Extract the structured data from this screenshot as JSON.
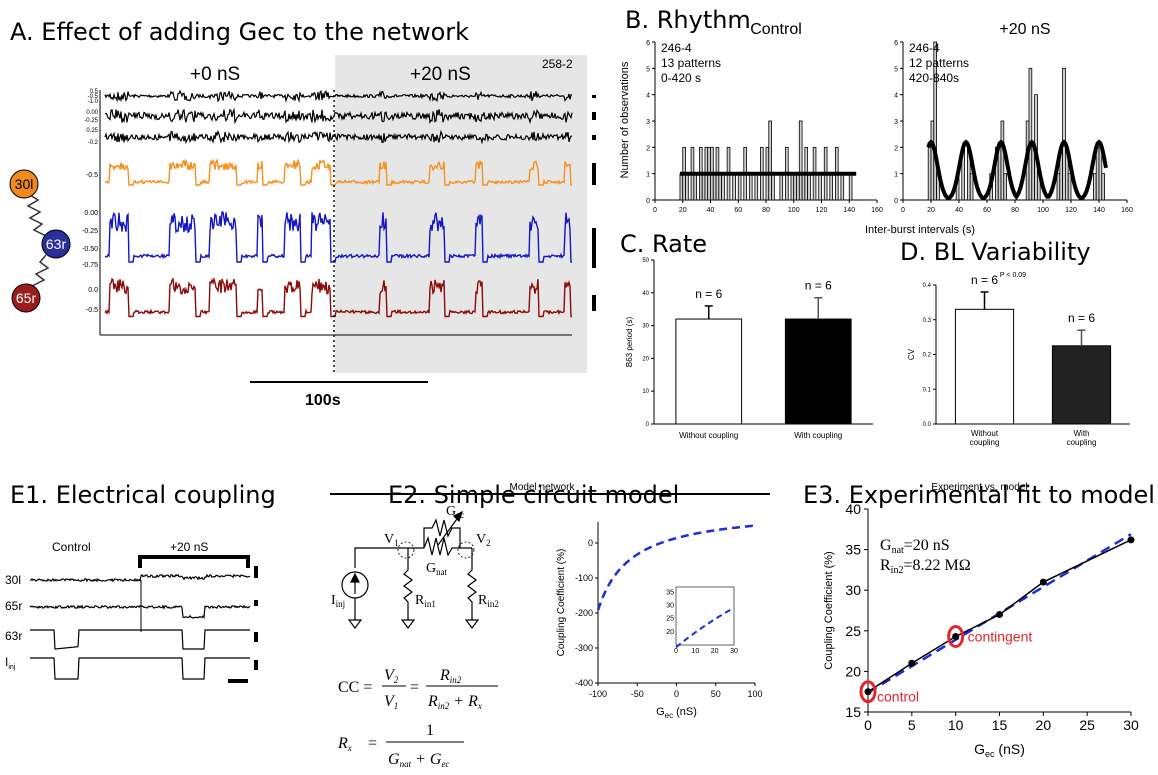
{
  "panelA": {
    "title": "A. Effect of adding Gec to the network",
    "cond_left": "+0 nS",
    "cond_right": "+20 nS",
    "file_id": "258-2",
    "scale_label": "100s",
    "neurons": [
      "30l",
      "63r",
      "65r"
    ],
    "neuron_colors": [
      "#f08a1c",
      "#2b2f9c",
      "#9b1c1c"
    ],
    "trace_colors": [
      "#f7901e",
      "#1515c8",
      "#8b0a0a"
    ],
    "trace_ticks": [
      [
        "0.5",
        "-0.5",
        "-1.0"
      ],
      [
        "0.00",
        "-0.25"
      ],
      [
        "0.25",
        "-0.2"
      ],
      [
        "-0.5"
      ],
      [
        "0.00",
        "-0.25",
        "-0.50",
        "-0.75"
      ],
      [
        "0.0",
        "-0.5"
      ]
    ]
  },
  "panelB": {
    "title": "B. Rhythm",
    "xlabel": "Inter-burst intervals (s)",
    "ylabel": "Number of observations"
  },
  "panelC": {
    "title": "C. Rate"
  },
  "panelD": {
    "title": "D. BL Variability"
  },
  "panelE1": {
    "title": "E1. Electrical coupling",
    "control": "Control",
    "cond": "+20 nS",
    "rows": [
      "30l",
      "65r",
      "63r",
      "I"
    ],
    "rows_sub": "inj"
  },
  "panelE2": {
    "title": "E2. Simple circuit model",
    "subtitle": "Model network",
    "labels": {
      "gec": "G",
      "gec_sub": "ec",
      "gnat": "G",
      "gnat_sub": "nat",
      "v1": "V",
      "v1_sub": "1",
      "v2": "V",
      "v2_sub": "2",
      "iinj": "I",
      "iinj_sub": "inj",
      "rin1": "R",
      "rin1_sub": "in1",
      "rin2": "R",
      "rin2_sub": "in2"
    },
    "eq1": {
      "lhs": "CC =",
      "n1": "V",
      "n1s": "2",
      "d1": "V",
      "d1s": "1",
      "eq": "=",
      "n2": "R",
      "n2s": "in2",
      "d2": "R",
      "d2s": "in2",
      "d2b": " + R",
      "d2bs": "x"
    },
    "eq2": {
      "lhs": "R",
      "lhss": "x",
      "eq": "=",
      "num": "1",
      "den": "G",
      "dens": "nat",
      "den2": " + G",
      "den2s": "ec"
    }
  },
  "panelE3": {
    "title": "E3. Experimental fit to model",
    "annot1": "G",
    "annot1_sub": "nat",
    "annot1_val": "=20 nS",
    "annot2": "R",
    "annot2_sub": "in2",
    "annot2_val": "=8.22 MΩ",
    "control_label": "control",
    "contingent_label": "contingent"
  },
  "chart_data": [
    {
      "type": "bar",
      "panel": "B-left",
      "title": "Control",
      "annotation": [
        "246-4",
        "13 patterns",
        "0-420 s"
      ],
      "xlim": [
        0,
        160
      ],
      "ylim": [
        0,
        6
      ],
      "x_ticks": [
        "0",
        "20",
        "40",
        "60",
        "80",
        "100",
        "120",
        "140",
        "160"
      ],
      "y_ticks": [
        "0",
        "1",
        "2",
        "3",
        "4",
        "5",
        "6"
      ],
      "bin_width": 2,
      "x": [
        18,
        20,
        22,
        26,
        28,
        32,
        34,
        36,
        38,
        40,
        42,
        44,
        46,
        48,
        52,
        56,
        60,
        64,
        68,
        72,
        76,
        80,
        82,
        84,
        90,
        94,
        98,
        100,
        102,
        104,
        106,
        108,
        110,
        114,
        118,
        122,
        126,
        130,
        134,
        140
      ],
      "values": [
        1,
        2,
        1,
        2,
        1,
        2,
        1,
        2,
        2,
        2,
        1,
        2,
        1,
        1,
        2,
        1,
        1,
        2,
        1,
        1,
        2,
        2,
        3,
        1,
        1,
        2,
        1,
        1,
        1,
        3,
        1,
        2,
        1,
        2,
        1,
        2,
        1,
        2,
        1,
        1
      ],
      "fit": "flat line at y≈1"
    },
    {
      "type": "bar",
      "panel": "B-right",
      "title": "+20 nS",
      "annotation": [
        "246-4",
        "12 patterns",
        "420-840s"
      ],
      "xlim": [
        0,
        160
      ],
      "ylim": [
        0,
        6
      ],
      "x_ticks": [
        "0",
        "20",
        "40",
        "60",
        "80",
        "100",
        "120",
        "140",
        "160"
      ],
      "y_ticks": [
        "0",
        "1",
        "2",
        "3",
        "4",
        "5",
        "6"
      ],
      "bin_width": 2,
      "x": [
        18,
        20,
        22,
        24,
        38,
        42,
        46,
        48,
        62,
        66,
        68,
        70,
        72,
        88,
        90,
        92,
        94,
        96,
        110,
        112,
        114,
        116,
        118,
        136,
        138,
        140,
        142
      ],
      "values": [
        2,
        3,
        6,
        1,
        1,
        2,
        2,
        1,
        1,
        2,
        2,
        3,
        1,
        3,
        5,
        2,
        4,
        1,
        1,
        2,
        5,
        2,
        1,
        1,
        2,
        2,
        1
      ],
      "fit": "periodic humps centred ~20, 45, 70, 92, 115, 140"
    },
    {
      "type": "bar",
      "panel": "C",
      "categories": [
        "Without coupling",
        "With coupling"
      ],
      "values": [
        32,
        32
      ],
      "errors": [
        4,
        6.5
      ],
      "n_labels": [
        "n = 6",
        "n = 6"
      ],
      "ylabel": "B63  period (s)",
      "ylim": [
        0,
        50
      ],
      "y_ticks": [
        "0",
        "10",
        "20",
        "30",
        "40",
        "50"
      ],
      "colors": [
        "#ffffff",
        "#000000"
      ]
    },
    {
      "type": "bar",
      "panel": "D",
      "categories": [
        "Without coupling",
        "With coupling"
      ],
      "values": [
        0.33,
        0.225
      ],
      "errors": [
        0.05,
        0.045
      ],
      "n_labels": [
        "n = 6",
        "n = 6"
      ],
      "p_label": "P < 0.09",
      "ylabel": "CV",
      "ylim": [
        0,
        0.4
      ],
      "y_ticks": [
        "0.0",
        "0.1",
        "0.2",
        "0.3",
        "0.4"
      ],
      "colors": [
        "#ffffff",
        "#222222"
      ]
    },
    {
      "type": "line",
      "panel": "E2",
      "xlabel": "G",
      "xlabel_sub": "ec",
      "xlabel_unit": " (nS)",
      "ylabel": "Coupling Coefficient (%)",
      "xlim": [
        -100,
        100
      ],
      "ylim": [
        -400,
        60
      ],
      "x_ticks": [
        "-100",
        "-50",
        "0",
        "50",
        "100"
      ],
      "y_ticks": [
        "-400",
        "-300",
        "-200",
        "-100",
        "0"
      ],
      "inset": {
        "xlim": [
          0,
          30
        ],
        "ylim": [
          15,
          37
        ],
        "x_ticks": [
          "0",
          "10",
          "20",
          "30"
        ],
        "y_ticks": [
          "20",
          "25",
          "30",
          "35"
        ]
      }
    },
    {
      "type": "line",
      "panel": "E3",
      "title": "Experiment vs. model",
      "xlabel": "G",
      "xlabel_sub": "ec",
      "xlabel_unit": " (nS)",
      "ylabel": "Coupling Coefficient (%)",
      "xlim": [
        0,
        30
      ],
      "ylim": [
        15,
        40
      ],
      "x_ticks": [
        "0",
        "5",
        "10",
        "15",
        "20",
        "25",
        "30"
      ],
      "y_ticks": [
        "15",
        "20",
        "25",
        "30",
        "35",
        "40"
      ],
      "x": [
        0,
        5,
        10,
        15,
        20,
        30
      ],
      "experiment": [
        17.5,
        21,
        24.3,
        27,
        31,
        36.2
      ],
      "model_x": [
        0,
        30
      ],
      "model": [
        17.4,
        36.9
      ]
    }
  ]
}
